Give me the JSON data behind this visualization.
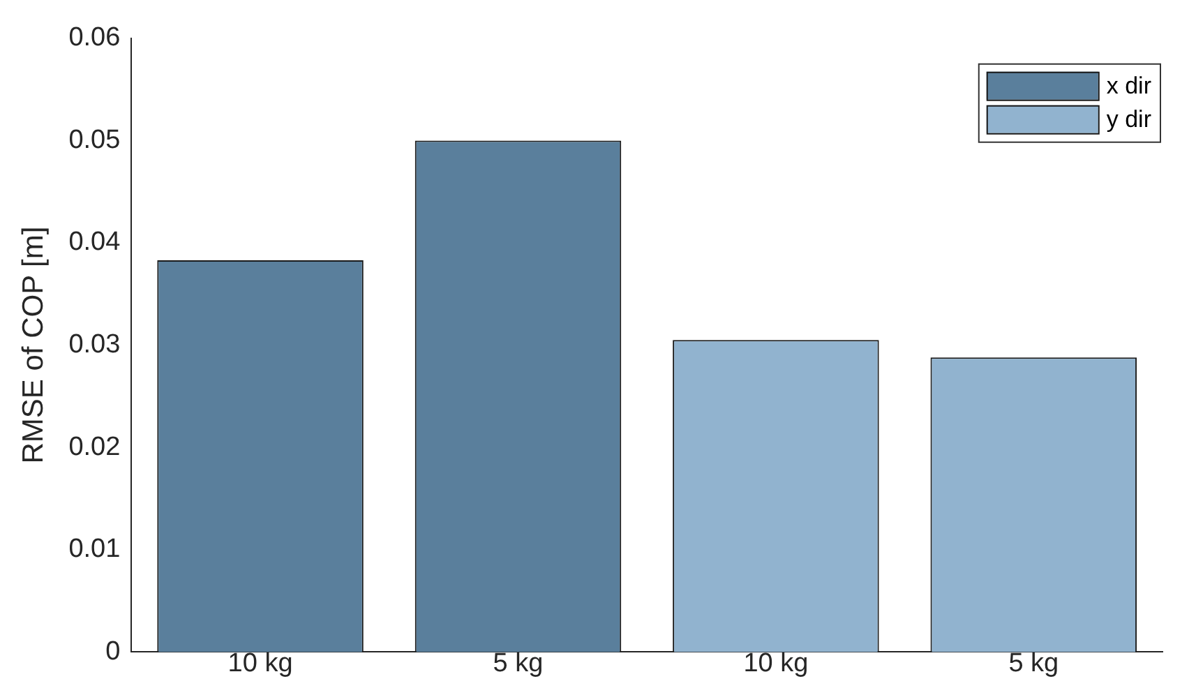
{
  "chart_data": {
    "type": "bar",
    "ylabel": "RMSE of COP [m]",
    "categories": [
      "10 kg",
      "5 kg",
      "10 kg",
      "5 kg"
    ],
    "series": [
      {
        "name": "x dir",
        "color": "#5a7f9c",
        "values": [
          0.0383,
          0.05,
          null,
          null
        ]
      },
      {
        "name": "y dir",
        "color": "#91b3cf",
        "values": [
          null,
          null,
          0.0305,
          0.0288
        ]
      }
    ],
    "ylim": [
      0,
      0.06
    ],
    "yticks": [
      0,
      0.01,
      0.02,
      0.03,
      0.04,
      0.05,
      0.06
    ],
    "grid": false,
    "legend": "top right"
  }
}
